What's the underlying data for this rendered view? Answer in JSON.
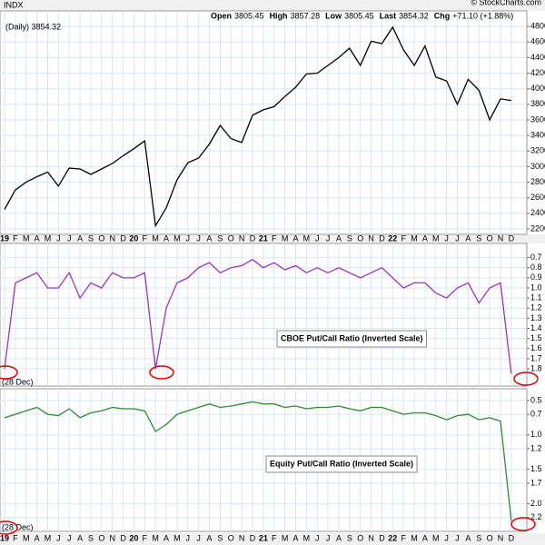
{
  "chart_data": [
    {
      "type": "line",
      "title": "INDX",
      "subtitle": "(Daily) 3854.32",
      "source": "© StockCharts.com",
      "stats": [
        {
          "label": "Open",
          "value": 3805.45
        },
        {
          "label": "High",
          "value": 3857.28
        },
        {
          "label": "Low",
          "value": 3805.45
        },
        {
          "label": "Last",
          "value": 3854.32
        },
        {
          "label": "Chg",
          "value": "+71.10 (+1.88%)"
        }
      ],
      "categories": [
        "19",
        "F",
        "M",
        "A",
        "M",
        "J",
        "J",
        "A",
        "S",
        "O",
        "N",
        "D",
        "20",
        "F",
        "M",
        "A",
        "M",
        "J",
        "J",
        "A",
        "S",
        "O",
        "N",
        "D",
        "21",
        "F",
        "M",
        "A",
        "M",
        "J",
        "J",
        "A",
        "S",
        "O",
        "N",
        "D",
        "22",
        "F",
        "M",
        "A",
        "M",
        "J",
        "J",
        "A",
        "S",
        "O",
        "N",
        "D"
      ],
      "values": [
        2450,
        2700,
        2800,
        2870,
        2930,
        2750,
        2980,
        2970,
        2900,
        2970,
        3040,
        3140,
        3230,
        3330,
        2240,
        2470,
        2830,
        3050,
        3110,
        3290,
        3530,
        3360,
        3310,
        3660,
        3730,
        3770,
        3900,
        4020,
        4190,
        4200,
        4300,
        4400,
        4520,
        4300,
        4610,
        4580,
        4790,
        4500,
        4300,
        4550,
        4150,
        4100,
        3800,
        4120,
        3980,
        3600,
        3870,
        3850
      ],
      "color": "#000000",
      "ylim": [
        2130,
        5000
      ],
      "yticks": [
        2200,
        2400,
        2600,
        2800,
        3000,
        3200,
        3400,
        3600,
        3800,
        4000,
        4200,
        4400,
        4600,
        4800
      ],
      "grid": true
    },
    {
      "type": "line",
      "annotation": "CBOE Put/Call Ratio (Inverted Scale)",
      "note": "(28 Dec)",
      "values": [
        1.8,
        0.95,
        0.9,
        0.85,
        1.0,
        1.0,
        0.85,
        1.1,
        0.95,
        1.0,
        0.85,
        0.9,
        0.9,
        0.85,
        1.8,
        1.2,
        0.95,
        0.9,
        0.8,
        0.75,
        0.85,
        0.8,
        0.78,
        0.72,
        0.8,
        0.75,
        0.82,
        0.78,
        0.85,
        0.8,
        0.85,
        0.8,
        0.85,
        0.9,
        0.85,
        0.8,
        0.9,
        1.0,
        0.95,
        0.95,
        1.05,
        1.1,
        1.0,
        0.95,
        1.15,
        1.0,
        0.95,
        1.85
      ],
      "color": "#9933cc",
      "ylim": [
        0.56,
        1.97
      ],
      "inverted": true,
      "yticks": [
        0.7,
        0.8,
        0.9,
        {
          "value": 1,
          "label": "1.0"
        },
        1.1,
        1.2,
        1.3,
        1.4,
        1.5,
        1.6,
        1.7,
        1.8
      ],
      "grid": true
    },
    {
      "type": "line",
      "annotation": "Equity Put/Call Ratio (Inverted Scale)",
      "note": "(28 Dec)",
      "categories": [
        "19",
        "F",
        "M",
        "A",
        "M",
        "J",
        "J",
        "A",
        "S",
        "O",
        "N",
        "D",
        "20",
        "F",
        "M",
        "A",
        "M",
        "J",
        "J",
        "A",
        "S",
        "O",
        "N",
        "D",
        "21",
        "F",
        "M",
        "A",
        "M",
        "J",
        "J",
        "A",
        "S",
        "O",
        "N",
        "D",
        "22",
        "F",
        "M",
        "A",
        "M",
        "J",
        "J",
        "A",
        "S",
        "O",
        "N",
        "D"
      ],
      "values": [
        0.75,
        0.7,
        0.65,
        0.6,
        0.7,
        0.72,
        0.62,
        0.75,
        0.68,
        0.65,
        0.6,
        0.62,
        0.62,
        0.65,
        0.95,
        0.85,
        0.7,
        0.65,
        0.6,
        0.55,
        0.6,
        0.58,
        0.55,
        0.52,
        0.55,
        0.55,
        0.6,
        0.58,
        0.62,
        0.6,
        0.6,
        0.58,
        0.62,
        0.65,
        0.6,
        0.6,
        0.65,
        0.7,
        0.68,
        0.68,
        0.72,
        0.78,
        0.72,
        0.7,
        0.78,
        0.75,
        0.8,
        2.25
      ],
      "color": "#2e8b2e",
      "ylim": [
        0.33,
        2.4
      ],
      "inverted": true,
      "yticks": [
        0.5,
        0.7,
        {
          "value": 1,
          "label": "1.0"
        },
        1.2,
        1.5,
        1.7,
        {
          "value": 2,
          "label": "2.0"
        },
        2.2
      ],
      "grid": true
    }
  ]
}
